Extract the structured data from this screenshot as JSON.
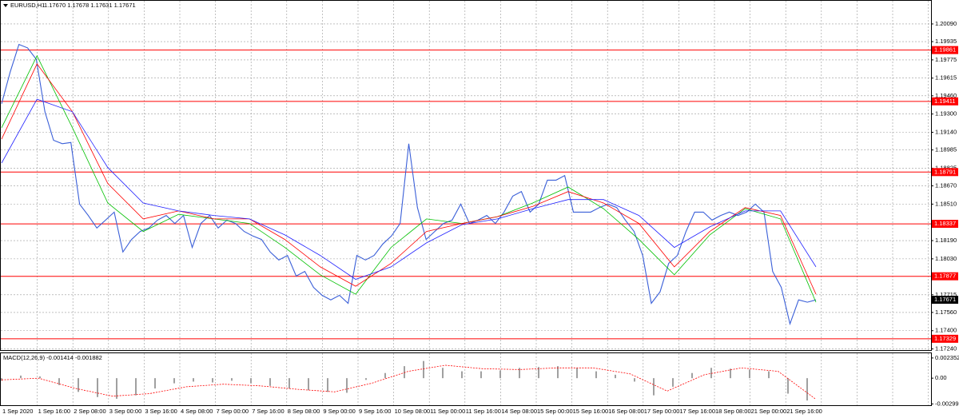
{
  "header": {
    "title": "EURUSD,H1",
    "ohlc": "1.17670 1.17678 1.17631 1.17671"
  },
  "x_labels": [
    "1 Sep 2020",
    "1 Sep 16:00",
    "2 Sep 08:00",
    "3 Sep 00:00",
    "3 Sep 16:00",
    "4 Sep 08:00",
    "7 Sep 00:00",
    "7 Sep 16:00",
    "8 Sep 08:00",
    "9 Sep 00:00",
    "9 Sep 16:00",
    "10 Sep 08:00",
    "11 Sep 00:00",
    "11 Sep 16:00",
    "14 Sep 08:00",
    "15 Sep 00:00",
    "15 Sep 16:00",
    "16 Sep 08:00",
    "17 Sep 00:00",
    "17 Sep 16:00",
    "18 Sep 08:00",
    "21 Sep 00:00",
    "21 Sep 16:00"
  ],
  "chart_data": [
    {
      "type": "line",
      "ylim": [
        1.1723,
        1.203
      ],
      "yticks": [
        {
          "value": 1.2009,
          "label": "1.20090"
        },
        {
          "value": 1.19935,
          "label": "1.19935"
        },
        {
          "value": 1.19775,
          "label": "1.19775"
        },
        {
          "value": 1.19615,
          "label": "1.19615"
        },
        {
          "value": 1.1946,
          "label": "1.19460"
        },
        {
          "value": 1.193,
          "label": "1.19300"
        },
        {
          "value": 1.1914,
          "label": "1.19140"
        },
        {
          "value": 1.18985,
          "label": "1.18985"
        },
        {
          "value": 1.18825,
          "label": "1.18825"
        },
        {
          "value": 1.1867,
          "label": "1.18670"
        },
        {
          "value": 1.1851,
          "label": "1.18510"
        },
        {
          "value": 1.1819,
          "label": "1.18190"
        },
        {
          "value": 1.1803,
          "label": "1.18030"
        },
        {
          "value": 1.17715,
          "label": "1.17715"
        },
        {
          "value": 1.1756,
          "label": "1.17560"
        },
        {
          "value": 1.174,
          "label": "1.17400"
        },
        {
          "value": 1.1724,
          "label": "1.17240"
        }
      ],
      "levels": [
        {
          "value": 1.19861,
          "label": "1.19861"
        },
        {
          "value": 1.19411,
          "label": "1.19411"
        },
        {
          "value": 1.18791,
          "label": "1.18791"
        },
        {
          "value": 1.18337,
          "label": "1.18337"
        },
        {
          "value": 1.17877,
          "label": "1.17877"
        },
        {
          "value": 1.17329,
          "label": "1.17329"
        }
      ],
      "last": {
        "value": 1.17671,
        "label": "1.17671"
      },
      "series": [
        {
          "color": "#3a5fd8",
          "width": 1.1,
          "values": [
            1.1939,
            1.1967,
            1.1991,
            1.1988,
            1.1978,
            1.1932,
            1.1907,
            1.1904,
            1.1905,
            1.1851,
            1.1841,
            1.183,
            1.1837,
            1.1844,
            1.1809,
            1.182,
            1.1827,
            1.183,
            1.1837,
            1.1841,
            1.1834,
            1.1841,
            1.1813,
            1.1834,
            1.1841,
            1.183,
            1.1837,
            1.1834,
            1.1827,
            1.1823,
            1.182,
            1.1809,
            1.1802,
            1.1806,
            1.1788,
            1.1792,
            1.1778,
            1.1771,
            1.1767,
            1.1771,
            1.1764,
            1.1806,
            1.1802,
            1.1806,
            1.1816,
            1.1823,
            1.1834,
            1.1904,
            1.1848,
            1.182,
            1.1827,
            1.1834,
            1.1837,
            1.1851,
            1.1834,
            1.1837,
            1.1841,
            1.1834,
            1.1844,
            1.1858,
            1.1862,
            1.1844,
            1.1851,
            1.1872,
            1.1872,
            1.1876,
            1.1844,
            1.1844,
            1.1844,
            1.1848,
            1.1851,
            1.1848,
            1.1837,
            1.1827,
            1.1806,
            1.1764,
            1.1774,
            1.1799,
            1.1806,
            1.1827,
            1.1844,
            1.1844,
            1.1837,
            1.1841,
            1.1844,
            1.1841,
            1.1844,
            1.1851,
            1.1844,
            1.1792,
            1.1778,
            1.1746,
            1.1767,
            1.1765,
            1.1767
          ]
        },
        {
          "color": "#00c000",
          "width": 0.8,
          "values": [
            1.1918,
            1.1981,
            1.1918,
            1.1852,
            1.1827,
            1.1842,
            1.1838,
            1.1834,
            1.1813,
            1.1789,
            1.1772,
            1.1813,
            1.1838,
            1.1834,
            1.184,
            1.1852,
            1.1866,
            1.1847,
            1.182,
            1.1789,
            1.1824,
            1.1847,
            1.1838,
            1.1765
          ]
        },
        {
          "color": "#ff0000",
          "width": 0.8,
          "values": [
            1.1908,
            1.1974,
            1.1932,
            1.1869,
            1.1838,
            1.1845,
            1.1838,
            1.1838,
            1.182,
            1.1796,
            1.1779,
            1.1799,
            1.1827,
            1.1834,
            1.184,
            1.1849,
            1.1862,
            1.1852,
            1.1834,
            1.1796,
            1.1827,
            1.1848,
            1.1841,
            1.1772
          ]
        },
        {
          "color": "#2020ff",
          "width": 0.8,
          "values": [
            1.1887,
            1.1943,
            1.1932,
            1.1883,
            1.1852,
            1.1845,
            1.1841,
            1.1838,
            1.1824,
            1.1806,
            1.1785,
            1.1796,
            1.1817,
            1.1833,
            1.1838,
            1.1847,
            1.1855,
            1.1855,
            1.1841,
            1.1813,
            1.1831,
            1.1845,
            1.1845,
            1.1796
          ]
        }
      ]
    },
    {
      "type": "macd",
      "title": "MACD(12,26,9) -0.001414 -0.001882",
      "ylim": [
        -0.00315,
        0.0029
      ],
      "yticks": [
        {
          "value": 0.002352,
          "label": "0.002352"
        },
        {
          "value": 0,
          "label": "0.00"
        },
        {
          "value": -0.002999,
          "label": "-0.002999"
        }
      ],
      "histogram": {
        "color": "#a0a0a0",
        "values": [
          -0.0003,
          0.0003,
          0.0002,
          -0.0008,
          -0.0016,
          -0.0022,
          -0.0024,
          -0.002,
          -0.0012,
          -0.0006,
          -0.0004,
          -0.0005,
          -0.0003,
          -0.0006,
          -0.0009,
          -0.0012,
          -0.0014,
          -0.0016,
          -0.0017,
          -0.0002,
          0.0006,
          0.0014,
          0.002,
          0.0012,
          0.0008,
          0.0008,
          0.0009,
          0.0012,
          0.0013,
          0.0014,
          0.0012,
          0.0008,
          0.0004,
          -0.0004,
          -0.002,
          -0.001,
          0.0006,
          0.0012,
          0.0011,
          0.001,
          0.0008,
          -0.0018,
          -0.0026
        ]
      },
      "signal": {
        "color": "#ff0000",
        "values": [
          -0.0002,
          0,
          -0.0012,
          -0.0021,
          -0.0018,
          -0.001,
          -0.0007,
          -0.0009,
          -0.0013,
          -0.0016,
          -0.0006,
          0.0008,
          0.0015,
          0.0011,
          0.001,
          0.0012,
          0.0012,
          0.0005,
          -0.0015,
          0.0004,
          0.0012,
          0.0008,
          -0.0024
        ]
      }
    }
  ]
}
